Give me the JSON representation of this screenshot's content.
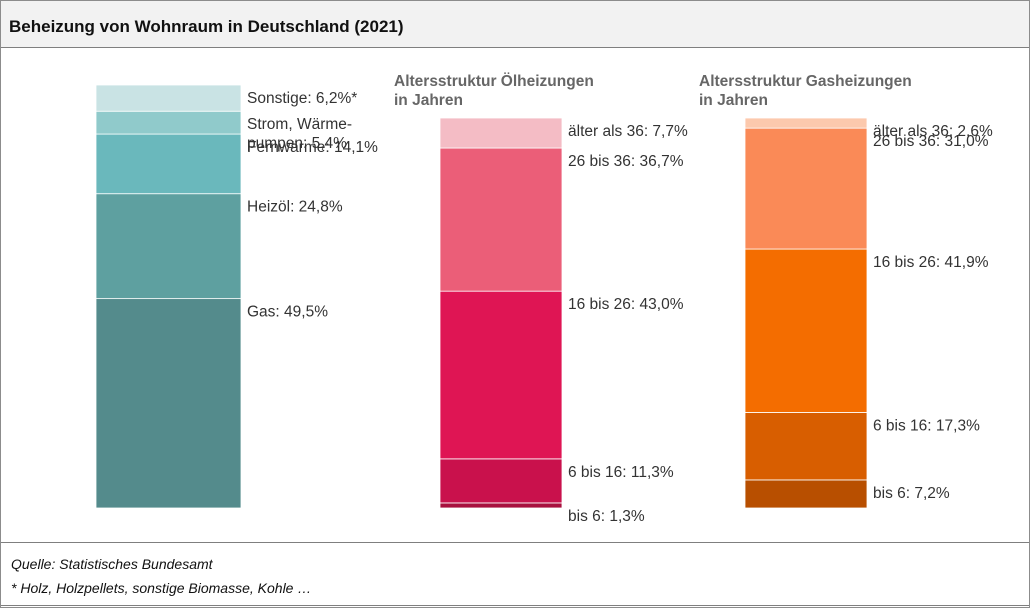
{
  "header": {
    "title": "Beheizung von Wohnraum in Deutschland (2021)"
  },
  "footer": {
    "source": "Quelle: Statistisches Bundesamt",
    "note": "* Holz, Holzpellets, sonstige Biomasse, Kohle …"
  },
  "chart_data": [
    {
      "type": "bar",
      "title": "",
      "stacked": true,
      "categories": [
        "Gas: 49,5%",
        "Heizöl: 24,8%",
        "Fernwärme: 14,1%",
        "Strom, Wärmepumpen: 5,4%",
        "Sonstige: 6,2%*"
      ],
      "label_lines": [
        [
          "Gas: 49,5%"
        ],
        [
          "Heizöl: 24,8%"
        ],
        [
          "Fernwärme: 14,1%"
        ],
        [
          "Strom, Wärme-",
          "pumpen: 5,4%"
        ],
        [
          "Sonstige: 6,2%*"
        ]
      ],
      "values": [
        49.5,
        24.8,
        14.1,
        5.4,
        6.2
      ],
      "colors": [
        "#548b8c",
        "#5ea0a0",
        "#6ab8bc",
        "#90cacb",
        "#c9e3e4"
      ]
    },
    {
      "type": "bar",
      "title": "Altersstruktur Ölheizungen in Jahren",
      "title_lines": [
        "Altersstruktur Ölheizungen",
        "in Jahren"
      ],
      "stacked": true,
      "categories": [
        "bis 6: 1,3%",
        "6 bis 16: 11,3%",
        "16 bis 26: 43,0%",
        "26 bis 36: 36,7%",
        "älter als 36: 7,7%"
      ],
      "label_lines": [
        [
          "bis 6: 1,3%"
        ],
        [
          "6 bis 16: 11,3%"
        ],
        [
          "16 bis 26: 43,0%"
        ],
        [
          "26 bis 36: 36,7%"
        ],
        [
          "älter als 36: 7,7%"
        ]
      ],
      "values": [
        1.3,
        11.3,
        43.0,
        36.7,
        7.7
      ],
      "colors": [
        "#a8103e",
        "#c9114c",
        "#df1554",
        "#eb5e78",
        "#f4bcc5"
      ]
    },
    {
      "type": "bar",
      "title": "Altersstruktur Gasheizungen in Jahren",
      "title_lines": [
        "Altersstruktur Gasheizungen",
        "in Jahren"
      ],
      "stacked": true,
      "categories": [
        "bis 6: 7,2%",
        "6 bis 16: 17,3%",
        "16 bis 26: 41,9%",
        "26 bis 36: 31,0%",
        "älter als 36: 2,6%"
      ],
      "label_lines": [
        [
          "bis 6: 7,2%"
        ],
        [
          "6 bis 16: 17,3%"
        ],
        [
          "16 bis 26: 41,9%"
        ],
        [
          "26 bis 36: 31,0%"
        ],
        [
          "älter als 36: 2,6%"
        ]
      ],
      "values": [
        7.2,
        17.3,
        41.9,
        31.0,
        2.6
      ],
      "colors": [
        "#b84f00",
        "#d85e00",
        "#f46d00",
        "#fa8a57",
        "#fcc9ad"
      ]
    }
  ]
}
